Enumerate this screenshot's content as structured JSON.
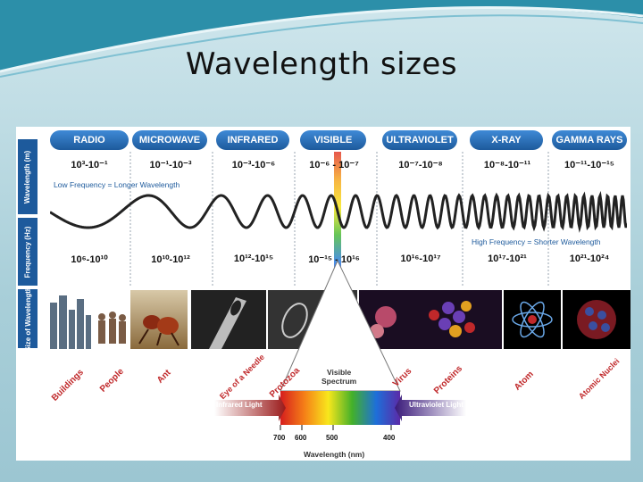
{
  "slide": {
    "title": "Wavelength sizes"
  },
  "diagram": {
    "side_labels": {
      "wavelength": "Wavelength (m)",
      "frequency": "Frequency (Hz)",
      "size": "Size of Wavelength"
    },
    "bands": [
      {
        "name": "RADIO",
        "wavelength": "10³-10⁻¹",
        "frequency": "10⁶-10¹⁰"
      },
      {
        "name": "MICROWAVE",
        "wavelength": "10⁻¹-10⁻³",
        "frequency": "10¹⁰-10¹²"
      },
      {
        "name": "INFRARED",
        "wavelength": "10⁻³-10⁻⁶",
        "frequency": "10¹²-10¹⁵"
      },
      {
        "name": "VISIBLE",
        "wavelength": "10⁻⁶ - 10⁻⁷",
        "frequency": "10⁻¹⁵ - 10¹⁶"
      },
      {
        "name": "ULTRAVIOLET",
        "wavelength": "10⁻⁷-10⁻⁸",
        "frequency": "10¹⁶-10¹⁷"
      },
      {
        "name": "X-RAY",
        "wavelength": "10⁻⁸-10⁻¹¹",
        "frequency": "10¹⁷-10²¹"
      },
      {
        "name": "GAMMA RAYS",
        "wavelength": "10⁻¹¹-10⁻¹⁵",
        "frequency": "10²¹-10²⁴"
      }
    ],
    "notes": {
      "low_freq": "Low Frequency = Longer Wavelength",
      "high_freq": "High Frequency = Shorter Wavelength"
    },
    "objects": [
      "Buildings",
      "People",
      "Ant",
      "Eye of a Needle",
      "Protozoa",
      "Virus",
      "Proteins",
      "Atom",
      "Atomic Nuclei"
    ],
    "spectrum": {
      "caption_line1": "Visible",
      "caption_line2": "Spectrum",
      "infrared_label": "Infrared Light",
      "ultraviolet_label": "Ultraviolet Light",
      "ticks": [
        "700",
        "600",
        "500",
        "400"
      ],
      "axis_label": "Wavelength (nm)"
    }
  }
}
